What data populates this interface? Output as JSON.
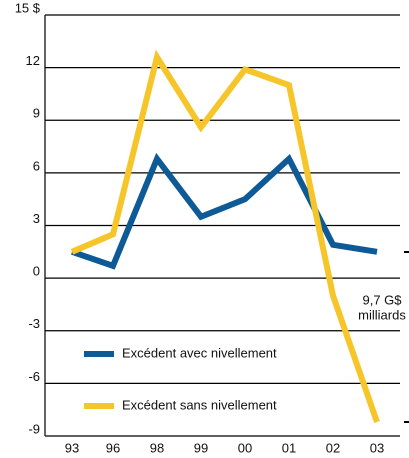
{
  "chart_data": {
    "type": "line",
    "categories": [
      "93",
      "96",
      "98",
      "99",
      "00",
      "01",
      "02",
      "03"
    ],
    "series": [
      {
        "name": "Excédent avec nivellement",
        "color": "#0e5a96",
        "values": [
          1.5,
          0.7,
          6.8,
          3.5,
          4.5,
          6.8,
          1.9,
          1.5
        ]
      },
      {
        "name": "Excédent sans nivellement",
        "color": "#f5c52a",
        "values": [
          1.5,
          2.5,
          12.6,
          8.6,
          11.9,
          11.0,
          -1.0,
          -8.2
        ]
      }
    ],
    "ylim": [
      -9,
      15
    ],
    "yticks": [
      -9,
      -6,
      -3,
      0,
      3,
      6,
      9,
      12,
      {
        "value": 15,
        "label": "15 $"
      }
    ],
    "grid": true,
    "annotation": [
      "9,7 G$",
      "milliards"
    ]
  }
}
